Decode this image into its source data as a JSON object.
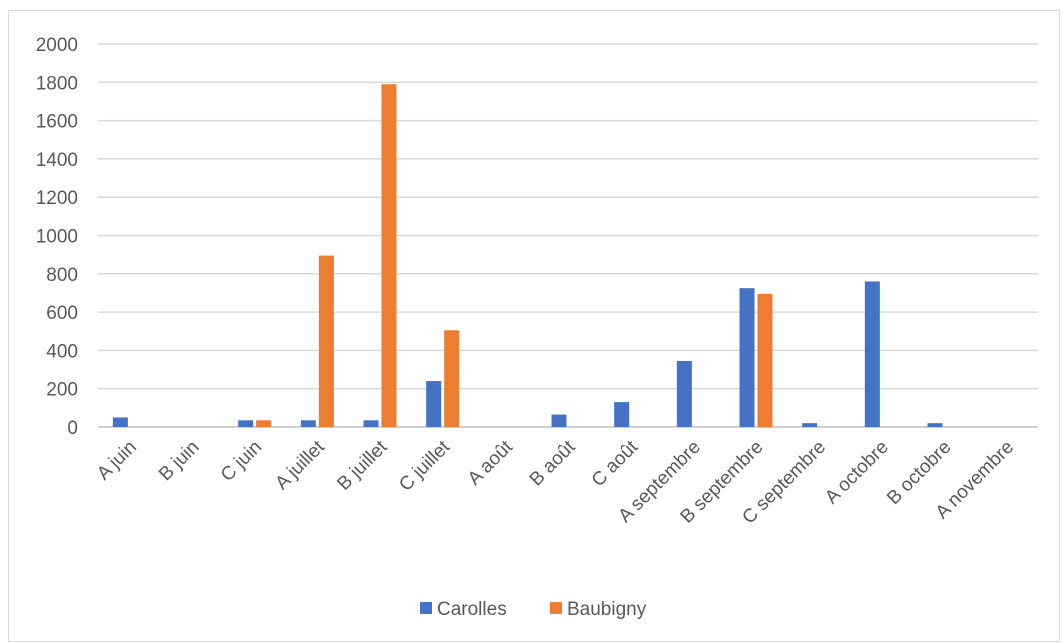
{
  "chart_data": {
    "type": "bar",
    "categories": [
      "A juin",
      "B juin",
      "C juin",
      "A juillet",
      "B juillet",
      "C juillet",
      "A août",
      "B août",
      "C août",
      "A septembre",
      "B septembre",
      "C septembre",
      "A octobre",
      "B octobre",
      "A novembre"
    ],
    "series": [
      {
        "name": "Carolles",
        "color": "#4472c4",
        "values": [
          50,
          0,
          35,
          35,
          35,
          240,
          0,
          65,
          130,
          345,
          725,
          20,
          760,
          20,
          0
        ]
      },
      {
        "name": "Baubigny",
        "color": "#ed7d31",
        "values": [
          0,
          0,
          35,
          895,
          1790,
          505,
          0,
          0,
          0,
          0,
          695,
          0,
          0,
          0,
          0
        ]
      }
    ],
    "ylim": [
      0,
      2000
    ],
    "yticks": [
      0,
      200,
      400,
      600,
      800,
      1000,
      1200,
      1400,
      1600,
      1800,
      2000
    ],
    "grid": true,
    "legend_position": "bottom"
  }
}
